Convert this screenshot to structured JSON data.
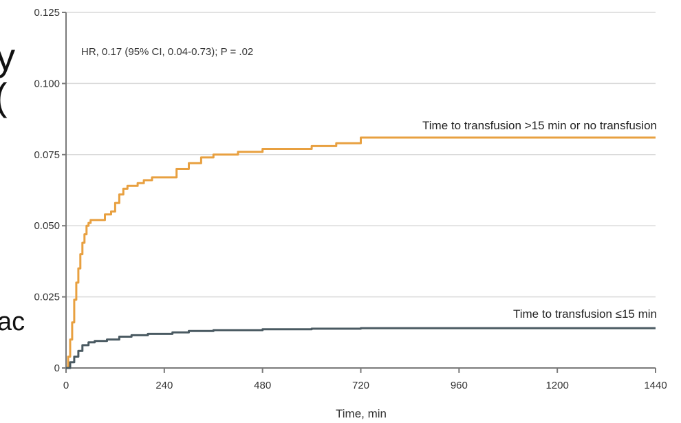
{
  "chart_data": {
    "type": "line",
    "xlabel": "Time, min",
    "ylabel": "",
    "xlim": [
      0,
      1440
    ],
    "ylim": [
      0,
      0.125
    ],
    "x_ticks": [
      0,
      240,
      480,
      720,
      960,
      1200,
      1440
    ],
    "x_tick_labels": [
      "0",
      "240",
      "480",
      "720",
      "960",
      "1200",
      "1440"
    ],
    "y_ticks": [
      0,
      0.025,
      0.05,
      0.075,
      0.1,
      0.125
    ],
    "y_tick_labels": [
      "0",
      "0.025",
      "0.050",
      "0.075",
      "0.100",
      "0.125"
    ],
    "grid": true,
    "step": true,
    "annotation": "HR, 0.17 (95% CI, 0.04-0.73); P = .02",
    "series": [
      {
        "name": "Time to transfusion >15 min or no transfusion",
        "color": "#e8a040",
        "x": [
          0,
          5,
          10,
          15,
          20,
          25,
          30,
          35,
          40,
          45,
          50,
          55,
          60,
          70,
          80,
          95,
          110,
          120,
          130,
          140,
          150,
          160,
          175,
          190,
          210,
          240,
          270,
          300,
          330,
          360,
          420,
          480,
          540,
          600,
          660,
          720,
          960,
          1200,
          1440
        ],
        "y": [
          0,
          0.004,
          0.01,
          0.016,
          0.024,
          0.03,
          0.035,
          0.04,
          0.044,
          0.047,
          0.05,
          0.051,
          0.052,
          0.052,
          0.052,
          0.054,
          0.055,
          0.058,
          0.061,
          0.063,
          0.064,
          0.064,
          0.065,
          0.066,
          0.067,
          0.067,
          0.07,
          0.072,
          0.074,
          0.075,
          0.076,
          0.077,
          0.077,
          0.078,
          0.079,
          0.081,
          0.081,
          0.081,
          0.081
        ]
      },
      {
        "name": "Time to transfusion ≤15 min",
        "color": "#4a5a62",
        "x": [
          0,
          10,
          20,
          30,
          40,
          55,
          70,
          100,
          130,
          160,
          200,
          260,
          300,
          360,
          480,
          600,
          720,
          960,
          1200,
          1440
        ],
        "y": [
          0,
          0.002,
          0.004,
          0.006,
          0.008,
          0.009,
          0.0095,
          0.01,
          0.011,
          0.0115,
          0.012,
          0.0125,
          0.013,
          0.0133,
          0.0136,
          0.0138,
          0.014,
          0.014,
          0.014,
          0.014
        ]
      }
    ]
  },
  "left_edge_fragments": [
    "y",
    "(",
    "ac"
  ]
}
